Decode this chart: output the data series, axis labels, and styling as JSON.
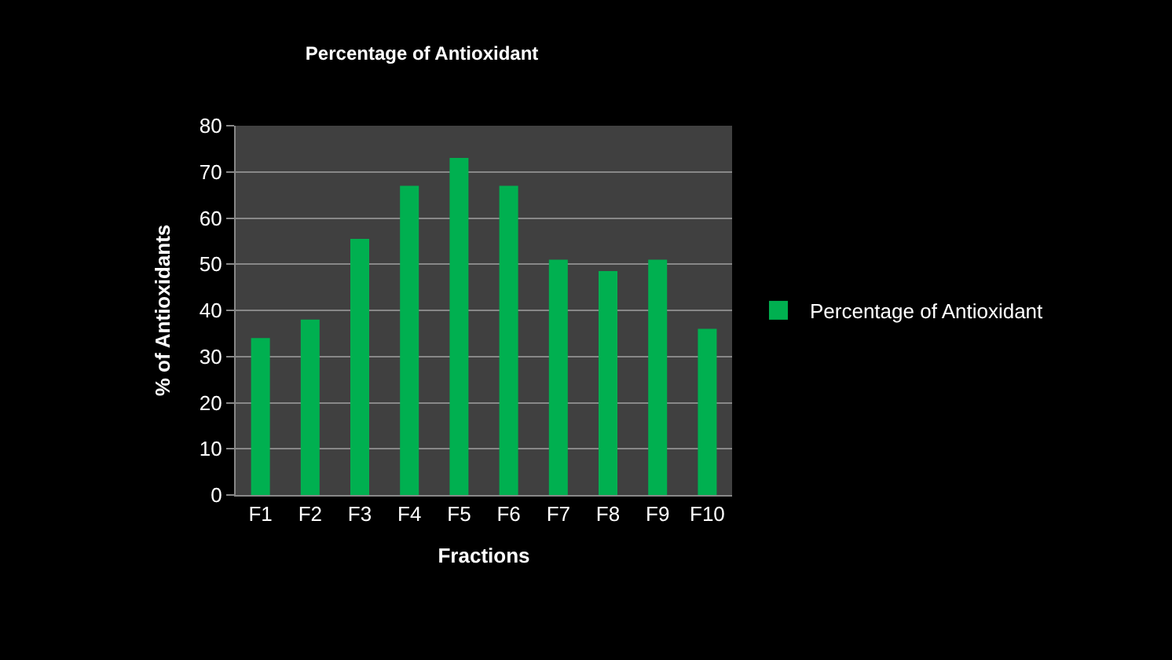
{
  "chart_data": {
    "type": "bar",
    "title": "Percentage of Antioxidant",
    "xlabel": "Fractions",
    "ylabel": "% of Antioxidants",
    "categories": [
      "F1",
      "F2",
      "F3",
      "F4",
      "F5",
      "F6",
      "F7",
      "F8",
      "F9",
      "F10"
    ],
    "series": [
      {
        "name": "Percentage of Antioxidant",
        "color": "#00b050",
        "values": [
          34,
          38,
          55.5,
          67,
          73,
          67,
          51,
          48.5,
          51,
          36
        ]
      }
    ],
    "ylim": [
      0,
      80
    ],
    "yticks": [
      0,
      10,
      20,
      30,
      40,
      50,
      60,
      70,
      80
    ],
    "grid": "y",
    "legend": "right"
  }
}
